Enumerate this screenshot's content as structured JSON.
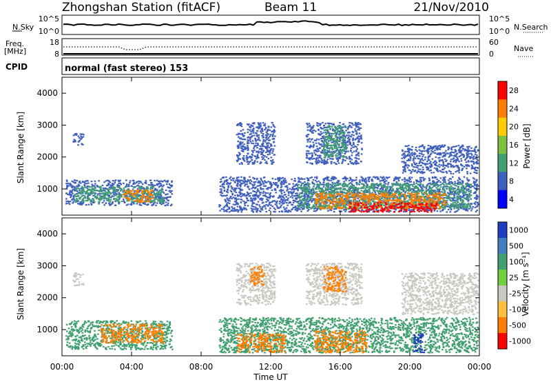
{
  "header": {
    "station": "Zhongshan Station (fitACF)",
    "beam": "Beam 11",
    "date": "21/Nov/2010"
  },
  "strips": {
    "nsky_label": "N.Sky",
    "nsky_ticks": [
      "10^5",
      "10^0"
    ],
    "nsearch_label": "N.Search",
    "nsearch_ticks": [
      "10^5",
      "10^0"
    ],
    "freq_label": "Freq.",
    "freq_unit": "[MHz]",
    "freq_ticks": [
      "18",
      "8"
    ],
    "nave_label": "Nave",
    "nave_ticks": [
      "60",
      "0"
    ],
    "cpid_label": "CPID",
    "cpid_text": "normal (fast stereo) 153"
  },
  "chart_data": [
    {
      "type": "heatmap",
      "name": "power",
      "ylabel": "Slant Range [km]",
      "yticks": [
        "1000",
        "2000",
        "3000",
        "4000"
      ],
      "ylim": [
        180,
        4500
      ],
      "xlim": [
        0,
        24
      ],
      "colorbar": {
        "label": "Power [dB]",
        "ticks": [
          "28",
          "24",
          "20",
          "16",
          "12",
          "8",
          "4"
        ],
        "colors": [
          "#ff0000",
          "#ff7f00",
          "#ffcc00",
          "#7fbf3f",
          "#3f9f6f",
          "#3f5fbf",
          "#0000ff"
        ]
      },
      "regions": [
        {
          "t0": 0.2,
          "t1": 6.3,
          "r0": 500,
          "r1": 1300,
          "color": "#3f5fbf"
        },
        {
          "t0": 0.7,
          "t1": 5.8,
          "r0": 600,
          "r1": 1100,
          "color": "#3f9f6f"
        },
        {
          "t0": 3.5,
          "t1": 5.2,
          "r0": 600,
          "r1": 1000,
          "color": "#ff7f00"
        },
        {
          "t0": 0.6,
          "t1": 1.2,
          "r0": 2400,
          "r1": 2800,
          "color": "#3f5fbf"
        },
        {
          "t0": 10.0,
          "t1": 12.2,
          "r0": 1800,
          "r1": 3100,
          "color": "#3f5fbf"
        },
        {
          "t0": 14.0,
          "t1": 17.2,
          "r0": 1800,
          "r1": 3100,
          "color": "#3f5fbf"
        },
        {
          "t0": 15.0,
          "t1": 16.3,
          "r0": 2000,
          "r1": 3000,
          "color": "#3f9f6f"
        },
        {
          "t0": 9.0,
          "t1": 23.9,
          "r0": 300,
          "r1": 1400,
          "color": "#3f5fbf"
        },
        {
          "t0": 13.5,
          "t1": 23.5,
          "r0": 400,
          "r1": 1200,
          "color": "#3f9f6f"
        },
        {
          "t0": 14.5,
          "t1": 22.0,
          "r0": 400,
          "r1": 900,
          "color": "#ff7f00"
        },
        {
          "t0": 16.5,
          "t1": 21.5,
          "r0": 300,
          "r1": 600,
          "color": "#ff0000"
        },
        {
          "t0": 19.5,
          "t1": 23.9,
          "r0": 1500,
          "r1": 2400,
          "color": "#3f5fbf"
        }
      ]
    },
    {
      "type": "heatmap",
      "name": "velocity",
      "ylabel": "Slant Range [km]",
      "yticks": [
        "1000",
        "2000",
        "3000",
        "4000"
      ],
      "ylim": [
        180,
        4500
      ],
      "xlim": [
        0,
        24
      ],
      "xlabel": "Time UT",
      "xticks": [
        "00:00",
        "04:00",
        "08:00",
        "12:00",
        "16:00",
        "20:00",
        "00:00"
      ],
      "colorbar": {
        "label": "Velocity [m s⁻¹]",
        "ticks": [
          "1000",
          "500",
          "100",
          "25",
          "-25",
          "-100",
          "-500",
          "-1000"
        ],
        "colors": [
          "#1f3fbf",
          "#3f7fbf",
          "#3f9f6f",
          "#6fcf3f",
          "#c8c8c0",
          "#ffbf40",
          "#ff7f00",
          "#ff0000"
        ]
      },
      "regions": [
        {
          "t0": 0.2,
          "t1": 6.3,
          "r0": 400,
          "r1": 1300,
          "color": "#3f9f6f"
        },
        {
          "t0": 2.2,
          "t1": 5.8,
          "r0": 600,
          "r1": 1200,
          "color": "#ff7f00"
        },
        {
          "t0": 0.6,
          "t1": 1.2,
          "r0": 2400,
          "r1": 2800,
          "color": "#c8c8c0"
        },
        {
          "t0": 10.0,
          "t1": 12.2,
          "r0": 1800,
          "r1": 3100,
          "color": "#c8c8c0"
        },
        {
          "t0": 10.8,
          "t1": 11.6,
          "r0": 2400,
          "r1": 3000,
          "color": "#ff7f00"
        },
        {
          "t0": 14.0,
          "t1": 17.2,
          "r0": 1800,
          "r1": 3100,
          "color": "#c8c8c0"
        },
        {
          "t0": 15.0,
          "t1": 16.3,
          "r0": 2200,
          "r1": 3000,
          "color": "#ff7f00"
        },
        {
          "t0": 9.0,
          "t1": 23.9,
          "r0": 300,
          "r1": 1400,
          "color": "#3f9f6f"
        },
        {
          "t0": 10.0,
          "t1": 12.8,
          "r0": 300,
          "r1": 900,
          "color": "#ff7f00"
        },
        {
          "t0": 14.5,
          "t1": 17.5,
          "r0": 300,
          "r1": 1000,
          "color": "#ff7f00"
        },
        {
          "t0": 19.5,
          "t1": 23.9,
          "r0": 1500,
          "r1": 2800,
          "color": "#c8c8c0"
        },
        {
          "t0": 20.2,
          "t1": 20.8,
          "r0": 300,
          "r1": 900,
          "color": "#1f3fbf"
        }
      ]
    }
  ]
}
